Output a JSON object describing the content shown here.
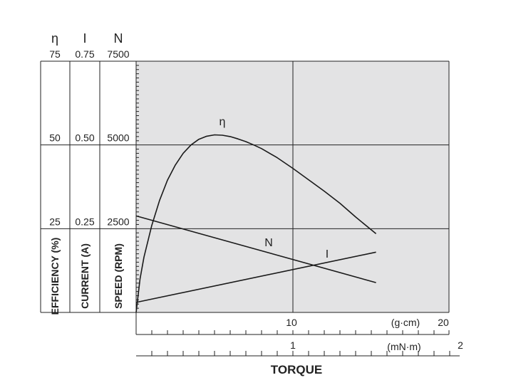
{
  "chart_data": {
    "type": "line",
    "title": "",
    "xlabel": "TORQUE",
    "x_axes": [
      {
        "unit": "(g·cm)",
        "ticks": [
          "10",
          "20"
        ],
        "range": [
          0,
          20
        ]
      },
      {
        "unit": "(mN·m)",
        "ticks": [
          "1",
          "2"
        ],
        "range": [
          0,
          2
        ]
      }
    ],
    "y_axes": [
      {
        "symbol": "η",
        "label": "EFFICIENCY (%)",
        "ticks": [
          "25",
          "50",
          "75"
        ],
        "range": [
          0,
          75
        ]
      },
      {
        "symbol": "I",
        "label": "CURRENT (A)",
        "ticks": [
          "0.25",
          "0.50",
          "0.75"
        ],
        "range": [
          0,
          0.75
        ]
      },
      {
        "symbol": "N",
        "label": "SPEED (RPM)",
        "ticks": [
          "2500",
          "5000",
          "7500"
        ],
        "range": [
          0,
          7500
        ]
      }
    ],
    "grid": true,
    "series": [
      {
        "name": "η",
        "axis": "EFFICIENCY (%)",
        "color": "#1a1a1a",
        "x": [
          0,
          0.25,
          0.5,
          1.0,
          1.5,
          2.0,
          2.5,
          3.0,
          3.5,
          4.0,
          4.5,
          5.0,
          5.5,
          6.0,
          6.5,
          7.0,
          7.5,
          8.0,
          9.0,
          10.0,
          11.0,
          12.0,
          13.0,
          14.0,
          15.3
        ],
        "y": [
          0,
          10,
          16.5,
          26,
          33.5,
          39.5,
          44,
          47.5,
          50,
          51.7,
          52.6,
          53,
          52.9,
          52.5,
          51.8,
          51,
          50,
          48.9,
          46.2,
          43,
          39.6,
          36.2,
          32.6,
          28.5,
          23.5
        ]
      },
      {
        "name": "N",
        "axis": "SPEED (RPM)",
        "color": "#1a1a1a",
        "x": [
          0,
          15.3
        ],
        "y": [
          2880,
          890
        ]
      },
      {
        "name": "I",
        "axis": "CURRENT (A)",
        "color": "#1a1a1a",
        "x": [
          0,
          15.3
        ],
        "y": [
          0.03,
          0.18
        ]
      }
    ]
  }
}
